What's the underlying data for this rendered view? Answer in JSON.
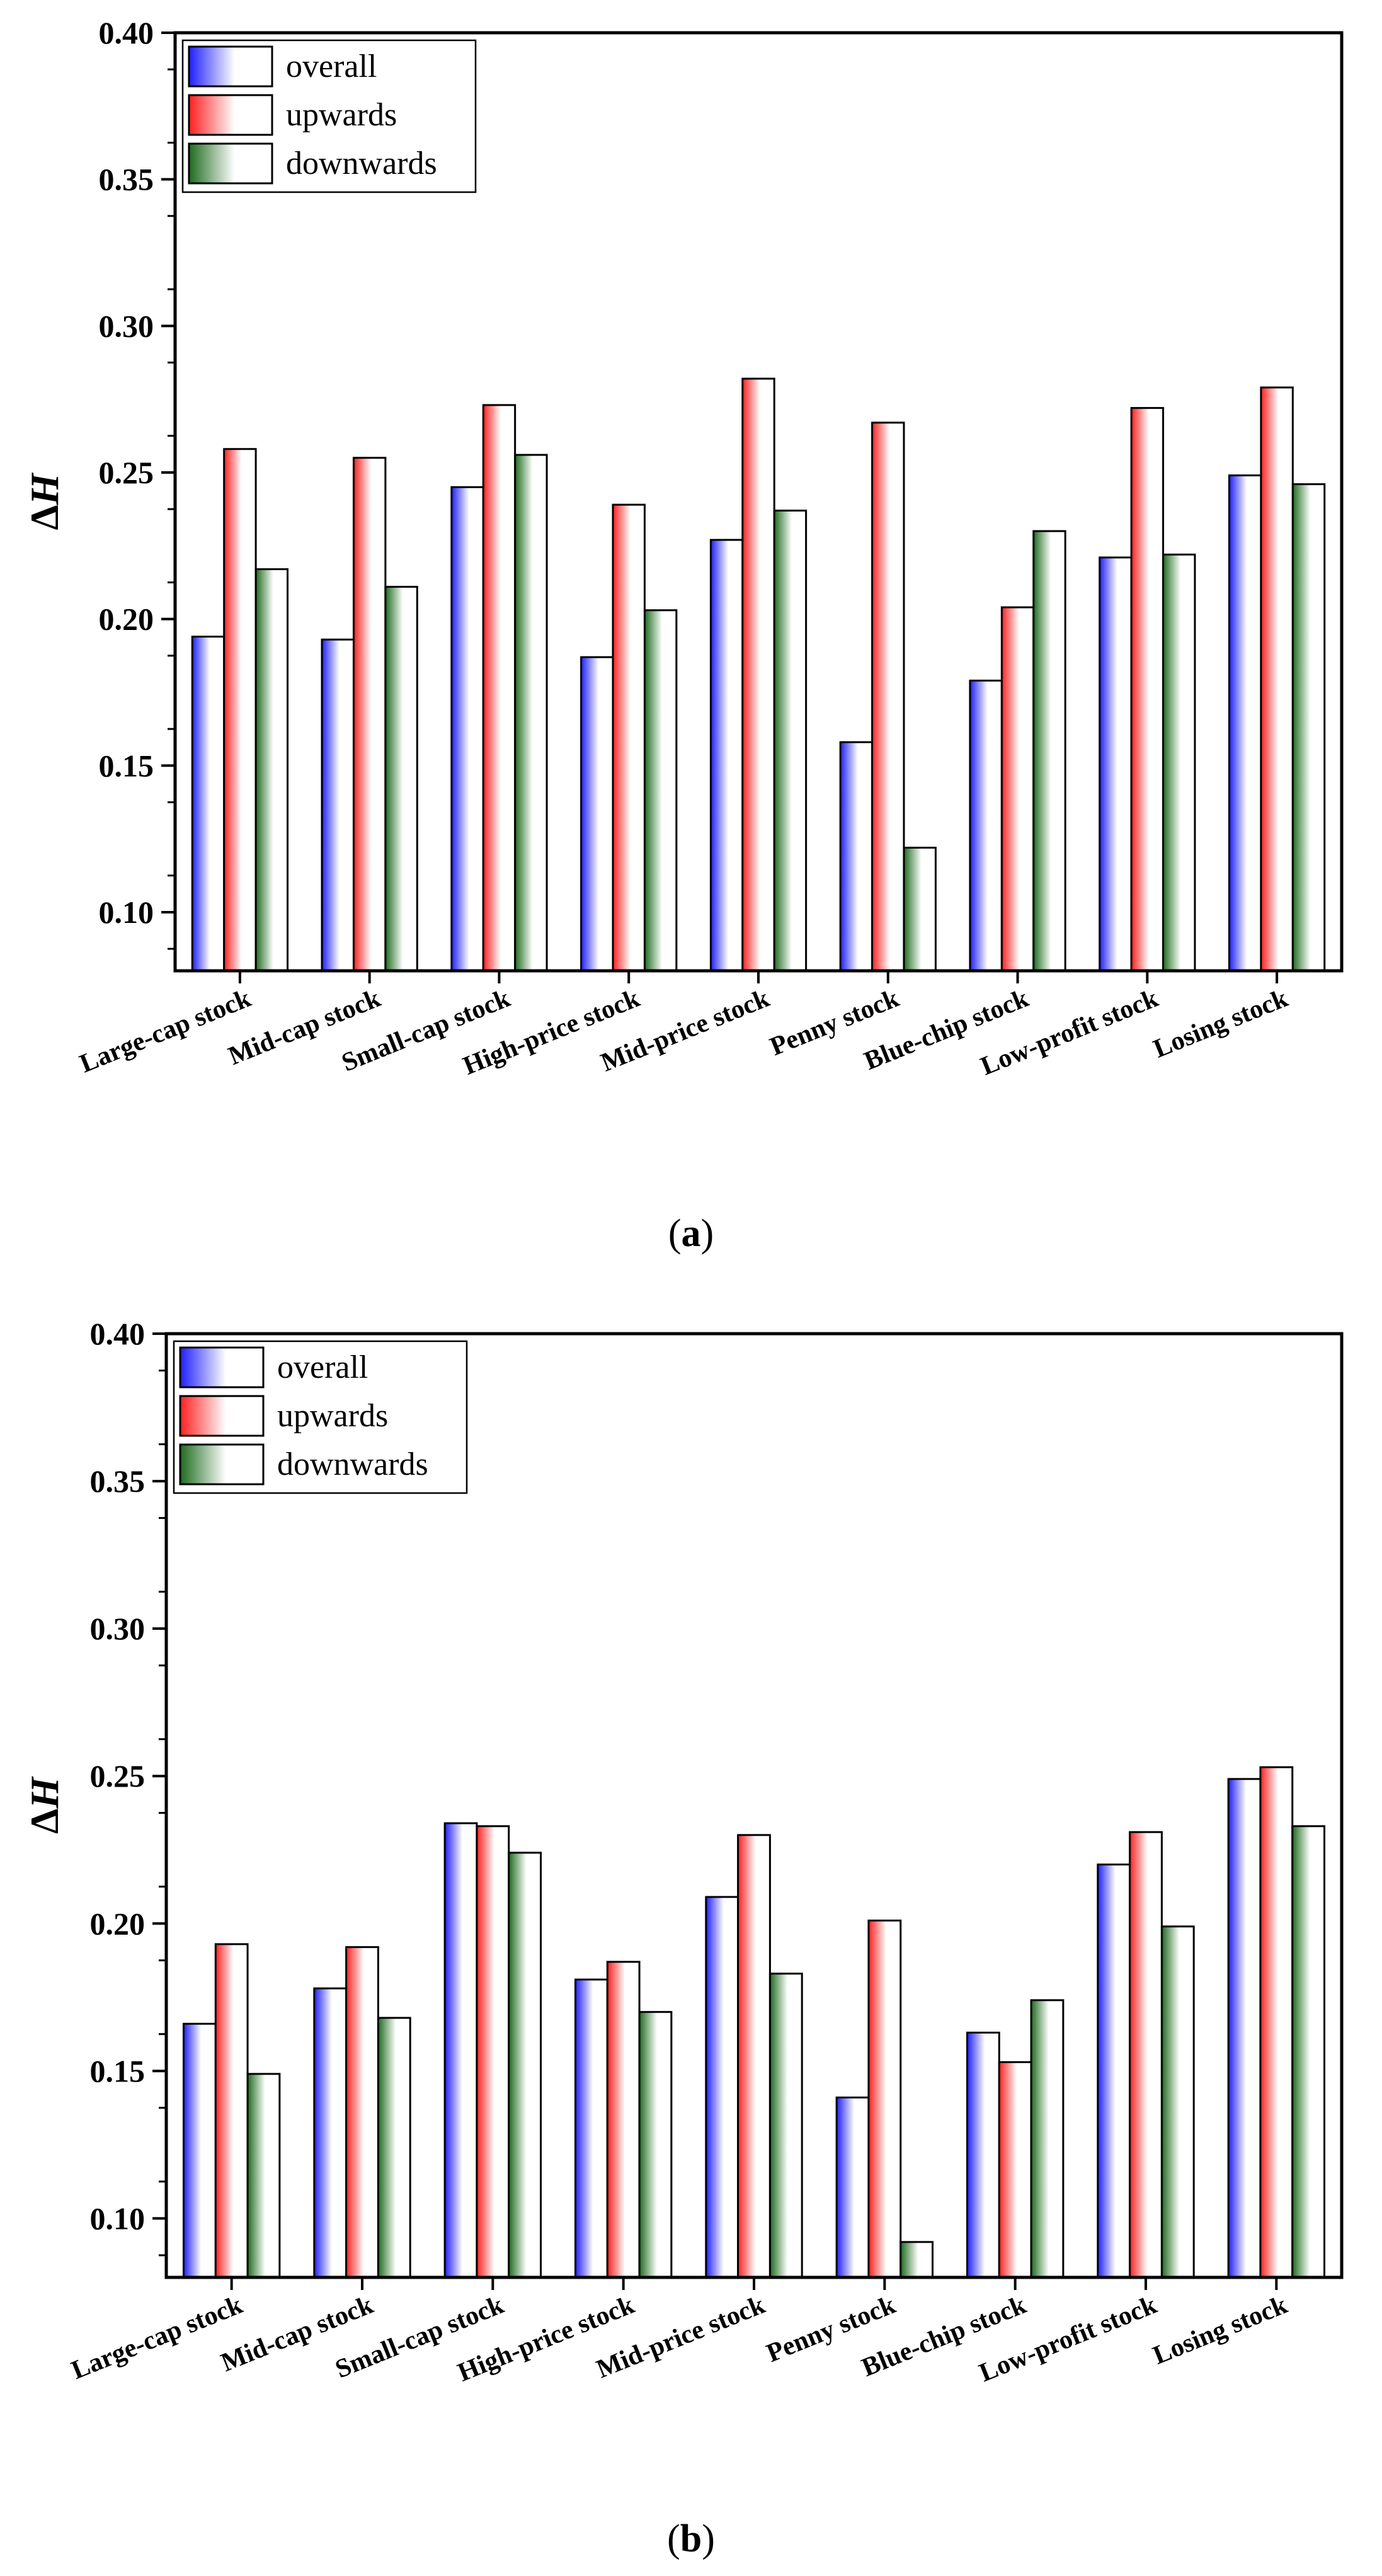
{
  "series_meta": [
    {
      "name": "overall",
      "color": "#1f1fff"
    },
    {
      "name": "upwards",
      "color": "#ff1f1f"
    },
    {
      "name": "downwards",
      "color": "#1f6b1f"
    }
  ],
  "chart_data": [
    {
      "type": "bar",
      "panel_label": "a",
      "title": "",
      "xlabel": "",
      "ylabel": "ΔH",
      "ylim": [
        0.08,
        0.4
      ],
      "yticks": [
        0.1,
        0.15,
        0.2,
        0.25,
        0.3,
        0.35,
        0.4
      ],
      "ytick_labels": [
        "0.10",
        "0.15",
        "0.20",
        "0.25",
        "0.30",
        "0.35",
        "0.40"
      ],
      "legend_position": "top-left",
      "categories": [
        "Large-cap stock",
        "Mid-cap stock",
        "Small-cap stock",
        "High-price stock",
        "Mid-price stock",
        "Penny stock",
        "Blue-chip stock",
        "Low-profit stock",
        "Losing stock"
      ],
      "series": [
        {
          "name": "overall",
          "values": [
            0.194,
            0.193,
            0.245,
            0.187,
            0.227,
            0.158,
            0.179,
            0.221,
            0.249
          ]
        },
        {
          "name": "upwards",
          "values": [
            0.258,
            0.255,
            0.273,
            0.239,
            0.282,
            0.267,
            0.204,
            0.272,
            0.279
          ]
        },
        {
          "name": "downwards",
          "values": [
            0.217,
            0.211,
            0.256,
            0.203,
            0.237,
            0.122,
            0.23,
            0.222,
            0.246
          ]
        }
      ]
    },
    {
      "type": "bar",
      "panel_label": "b",
      "title": "",
      "xlabel": "",
      "ylabel": "ΔH",
      "ylim": [
        0.08,
        0.4
      ],
      "yticks": [
        0.1,
        0.15,
        0.2,
        0.25,
        0.3,
        0.35,
        0.4
      ],
      "ytick_labels": [
        "0.10",
        "0.15",
        "0.20",
        "0.25",
        "0.30",
        "0.35",
        "0.40"
      ],
      "legend_position": "top-left",
      "categories": [
        "Large-cap stock",
        "Mid-cap stock",
        "Small-cap stock",
        "High-price stock",
        "Mid-price stock",
        "Penny stock",
        "Blue-chip stock",
        "Low-profit stock",
        "Losing stock"
      ],
      "series": [
        {
          "name": "overall",
          "values": [
            0.166,
            0.178,
            0.234,
            0.181,
            0.209,
            0.141,
            0.163,
            0.22,
            0.249
          ]
        },
        {
          "name": "upwards",
          "values": [
            0.193,
            0.192,
            0.233,
            0.187,
            0.23,
            0.201,
            0.153,
            0.231,
            0.253
          ]
        },
        {
          "name": "downwards",
          "values": [
            0.149,
            0.168,
            0.224,
            0.17,
            0.183,
            0.092,
            0.174,
            0.199,
            0.233
          ]
        }
      ]
    }
  ]
}
